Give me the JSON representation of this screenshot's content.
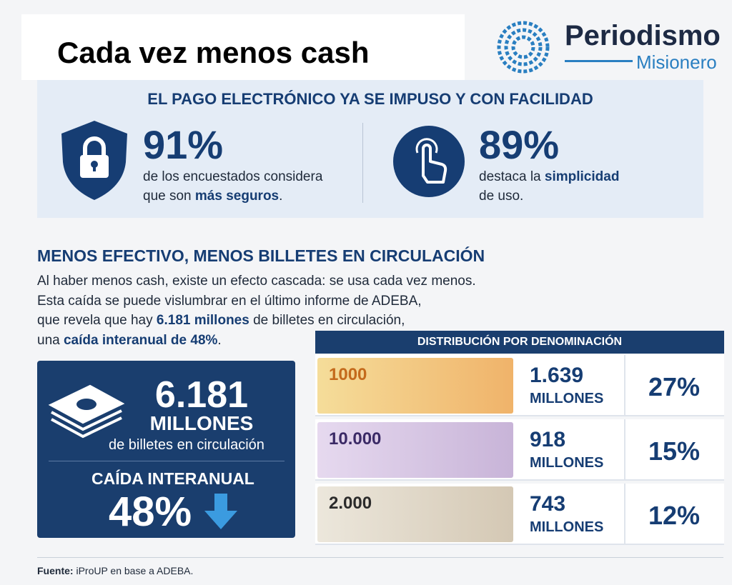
{
  "header": {
    "title": "Cada vez menos cash",
    "logo": [
      "Periodismo",
      "Misionero"
    ]
  },
  "electronic": {
    "heading": "EL PAGO ELECTRÓNICO YA SE IMPUSO Y CON FACILIDAD",
    "stats": [
      {
        "value": "91%",
        "text": [
          "de los encuestados considera",
          "que son ",
          "más seguros",
          "."
        ]
      },
      {
        "value": "89%",
        "text": [
          "destaca la ",
          "simplicidad",
          "de uso."
        ]
      }
    ]
  },
  "cash": {
    "heading": "MENOS EFECTIVO, MENOS BILLETES EN CIRCULACIÓN",
    "paragraph": [
      "Al haber menos cash, existe un efecto cascada: se usa cada vez menos.",
      "Esta caída se puede vislumbrar en el último informe de ADEBA,",
      "que revela que hay ",
      "6.181 millones",
      " de billetes en circulación,",
      "una ",
      "caída interanual de 48%",
      "."
    ],
    "box": {
      "amount": "6.181",
      "unit": "MILLONES",
      "caption": "de billetes en circulación",
      "drop_label": "CAÍDA INTERANUAL",
      "drop": "48%"
    }
  },
  "table": {
    "heading": "DISTRIBUCIÓN POR DENOMINACIÓN",
    "rows": [
      {
        "note": "1000",
        "amount": "1.639",
        "unit": "MILLONES",
        "share": "27%"
      },
      {
        "note": "10.000",
        "amount": "918",
        "unit": "MILLONES",
        "share": "15%"
      },
      {
        "note": "2.000",
        "amount": "743",
        "unit": "MILLONES",
        "share": "12%"
      }
    ]
  },
  "footer": {
    "label": "Fuente:",
    "text": " iProUP en base a ADEBA."
  }
}
